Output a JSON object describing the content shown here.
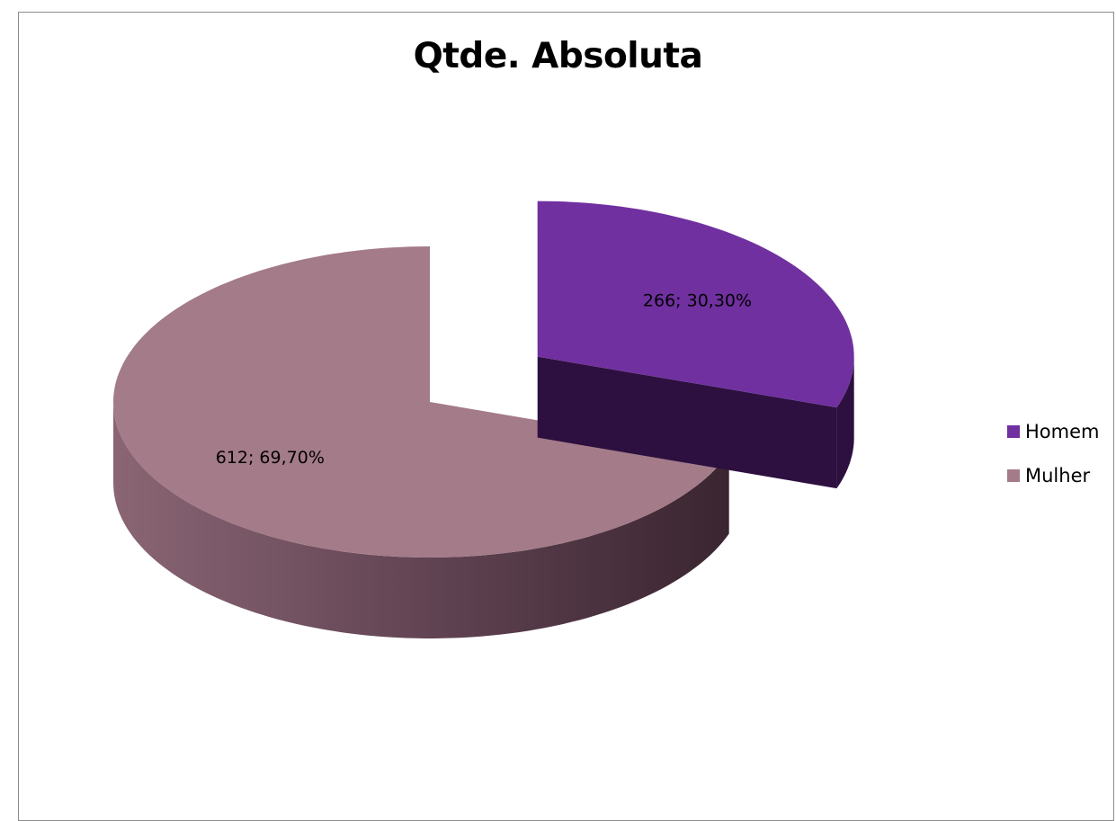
{
  "chart_data": {
    "type": "pie",
    "title": "Qtde. Absoluta",
    "categories": [
      "Homem",
      "Mulher"
    ],
    "values": [
      266,
      612
    ],
    "percent_labels": [
      "30,30%",
      "69,70%"
    ],
    "data_labels": [
      "266; 30,30%",
      "612; 69,70%"
    ],
    "colors": [
      "#7030A0",
      "#A47B88"
    ],
    "side_colors": [
      "#2D1040",
      "#5B3945"
    ],
    "exploded": [
      true,
      false
    ],
    "style": "3d",
    "legend_position": "right"
  },
  "legend": [
    {
      "label": "Homem",
      "color": "#7030A0"
    },
    {
      "label": "Mulher",
      "color": "#A47B88"
    }
  ]
}
